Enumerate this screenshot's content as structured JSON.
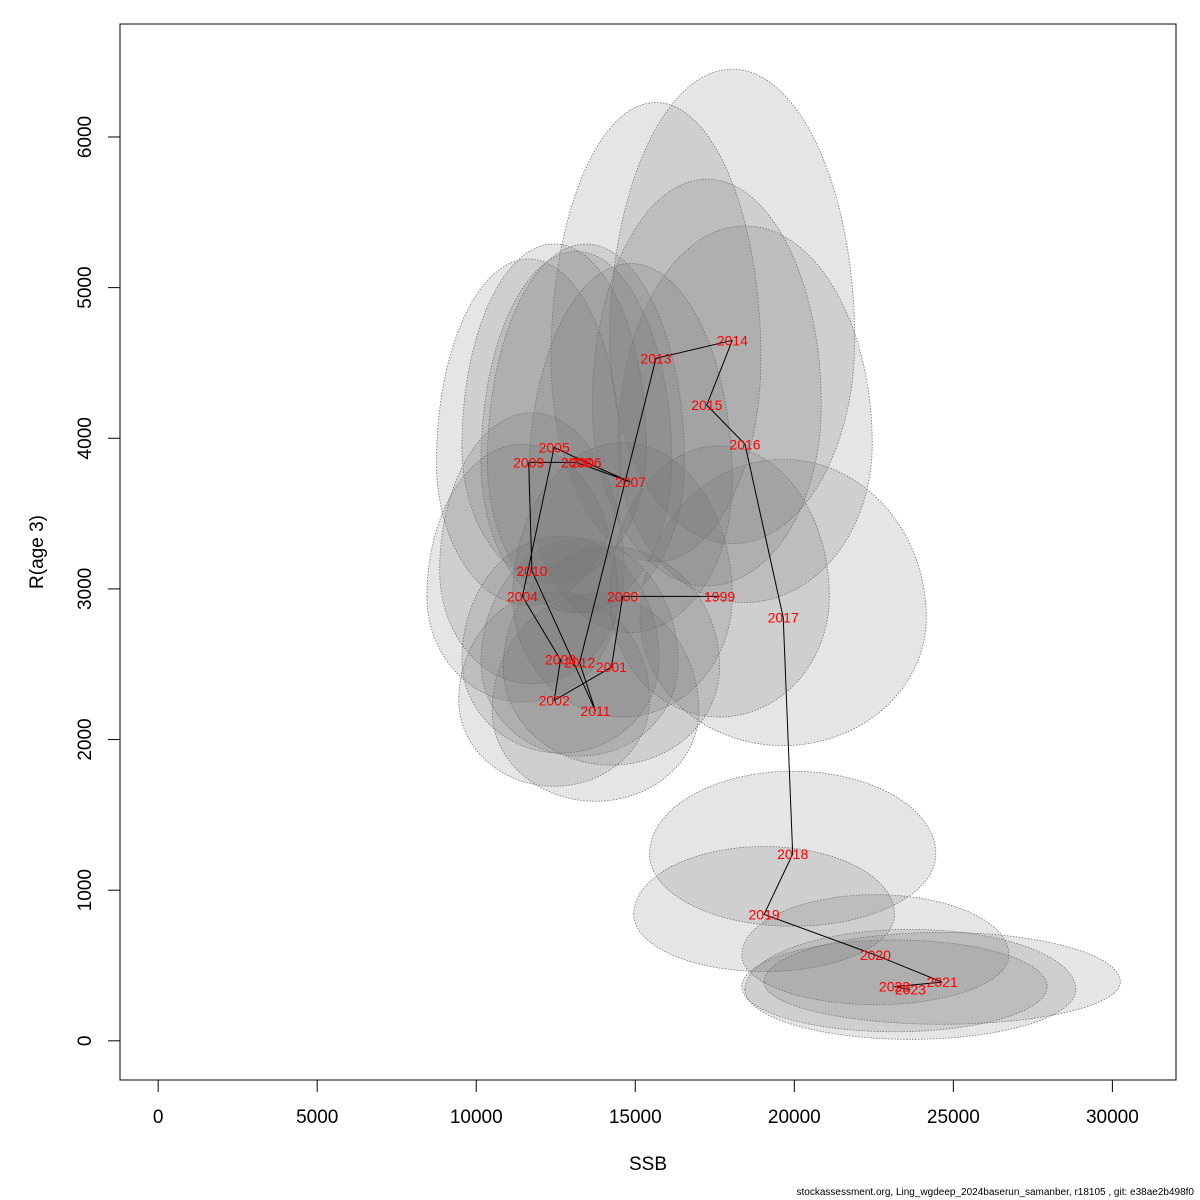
{
  "chart_data": {
    "type": "scatter",
    "xlabel": "SSB",
    "ylabel": "R(age 3)",
    "xlim": [
      -1200,
      32000
    ],
    "ylim": [
      -260,
      6750
    ],
    "xticks": [
      0,
      5000,
      10000,
      15000,
      20000,
      25000,
      30000
    ],
    "yticks": [
      0,
      1000,
      2000,
      3000,
      4000,
      5000,
      6000
    ],
    "connect_points": true,
    "points": [
      {
        "year": "1999",
        "x": 17650,
        "y": 2950,
        "ex": 3450,
        "ey_up": 1000,
        "ey_dn": 800
      },
      {
        "year": "2000",
        "x": 14600,
        "y": 2950,
        "ex": 3450,
        "ey_up": 1020,
        "ey_dn": 800
      },
      {
        "year": "2001",
        "x": 14250,
        "y": 2480,
        "ex": 3400,
        "ey_up": 800,
        "ey_dn": 650
      },
      {
        "year": "2002",
        "x": 12450,
        "y": 2260,
        "ex": 3000,
        "ey_up": 720,
        "ey_dn": 570
      },
      {
        "year": "2003",
        "x": 12650,
        "y": 2530,
        "ex": 3100,
        "ey_up": 820,
        "ey_dn": 620
      },
      {
        "year": "2004",
        "x": 11450,
        "y": 2950,
        "ex": 3000,
        "ey_up": 1010,
        "ey_dn": 700
      },
      {
        "year": "2005",
        "x": 12450,
        "y": 3940,
        "ex": 2900,
        "ey_up": 1350,
        "ey_dn": 900
      },
      {
        "year": "2006",
        "x": 13450,
        "y": 3840,
        "ex": 3100,
        "ey_up": 1450,
        "ey_dn": 1000
      },
      {
        "year": "2007",
        "x": 14850,
        "y": 3710,
        "ex": 3200,
        "ey_up": 1450,
        "ey_dn": 1000
      },
      {
        "year": "2008",
        "x": 13150,
        "y": 3840,
        "ex": 3000,
        "ey_up": 1400,
        "ey_dn": 1000
      },
      {
        "year": "2009",
        "x": 11650,
        "y": 3840,
        "ex": 2900,
        "ey_up": 1350,
        "ey_dn": 950
      },
      {
        "year": "2010",
        "x": 11750,
        "y": 3120,
        "ex": 2900,
        "ey_up": 1050,
        "ey_dn": 750
      },
      {
        "year": "2011",
        "x": 13750,
        "y": 2190,
        "ex": 3250,
        "ey_up": 780,
        "ey_dn": 600
      },
      {
        "year": "2012",
        "x": 13250,
        "y": 2510,
        "ex": 3100,
        "ey_up": 820,
        "ey_dn": 620
      },
      {
        "year": "2013",
        "x": 15650,
        "y": 4530,
        "ex": 3300,
        "ey_up": 1700,
        "ey_dn": 1350
      },
      {
        "year": "2014",
        "x": 18050,
        "y": 4650,
        "ex": 3850,
        "ey_up": 1800,
        "ey_dn": 1350
      },
      {
        "year": "2015",
        "x": 17250,
        "y": 4220,
        "ex": 3600,
        "ey_up": 1500,
        "ey_dn": 1200
      },
      {
        "year": "2016",
        "x": 18450,
        "y": 3960,
        "ex": 4000,
        "ey_up": 1450,
        "ey_dn": 1050
      },
      {
        "year": "2017",
        "x": 19650,
        "y": 2810,
        "ex": 4500,
        "ey_up": 1050,
        "ey_dn": 850
      },
      {
        "year": "2018",
        "x": 19950,
        "y": 1240,
        "ex": 4500,
        "ey_up": 550,
        "ey_dn": 480
      },
      {
        "year": "2019",
        "x": 19050,
        "y": 840,
        "ex": 4100,
        "ey_up": 450,
        "ey_dn": 380
      },
      {
        "year": "2020",
        "x": 22550,
        "y": 570,
        "ex": 4200,
        "ey_up": 400,
        "ey_dn": 330
      },
      {
        "year": "2021",
        "x": 24650,
        "y": 390,
        "ex": 5600,
        "ey_up": 330,
        "ey_dn": 280
      },
      {
        "year": "2022",
        "x": 23150,
        "y": 360,
        "ex": 4800,
        "ey_up": 310,
        "ey_dn": 300
      },
      {
        "year": "2023",
        "x": 23650,
        "y": 340,
        "ex": 5200,
        "ey_up": 400,
        "ey_dn": 330
      }
    ]
  },
  "footer": "stockassessment.org, Ling_wgdeep_2024baserun_samanber, r18105 , git: e38ae2b498f0"
}
